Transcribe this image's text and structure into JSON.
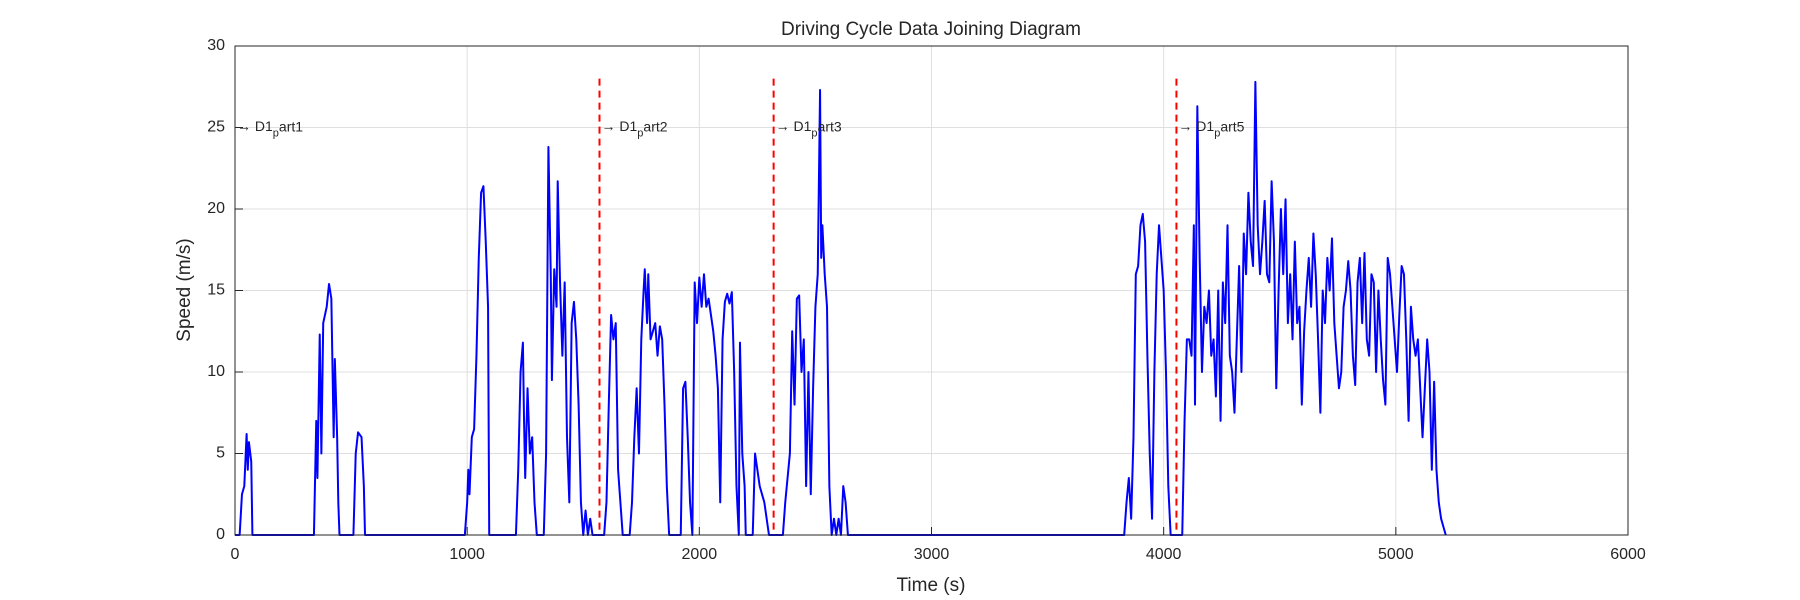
{
  "chart_data": {
    "type": "line",
    "title": "Driving Cycle Data Joining Diagram",
    "xlabel": "Time (s)",
    "ylabel": "Speed (m/s)",
    "xlim": [
      0,
      6000
    ],
    "xticks": [
      0,
      1000,
      2000,
      3000,
      4000,
      5000,
      6000
    ],
    "ylim": [
      0,
      30
    ],
    "yticks": [
      0,
      5,
      10,
      15,
      20,
      25,
      30
    ],
    "grid": true,
    "x": [
      0,
      20,
      30,
      40,
      50,
      55,
      60,
      70,
      75,
      340,
      350,
      355,
      365,
      372,
      380,
      395,
      405,
      415,
      425,
      430,
      440,
      445,
      450,
      510,
      520,
      530,
      545,
      555,
      560,
      990,
      1000,
      1005,
      1010,
      1020,
      1030,
      1040,
      1050,
      1060,
      1070,
      1080,
      1090,
      1095,
      1210,
      1220,
      1230,
      1240,
      1245,
      1250,
      1260,
      1270,
      1280,
      1290,
      1300,
      1330,
      1340,
      1350,
      1360,
      1365,
      1375,
      1385,
      1390,
      1400,
      1410,
      1420,
      1430,
      1440,
      1450,
      1460,
      1470,
      1480,
      1490,
      1500,
      1510,
      1520,
      1530,
      1540,
      1590,
      1600,
      1610,
      1620,
      1630,
      1640,
      1650,
      1660,
      1670,
      1700,
      1710,
      1720,
      1730,
      1740,
      1750,
      1760,
      1765,
      1775,
      1780,
      1790,
      1800,
      1810,
      1820,
      1830,
      1840,
      1850,
      1860,
      1870,
      1920,
      1930,
      1940,
      1950,
      1960,
      1970,
      1980,
      1990,
      2000,
      2010,
      2020,
      2030,
      2040,
      2050,
      2060,
      2070,
      2080,
      2090,
      2100,
      2110,
      2120,
      2130,
      2140,
      2150,
      2160,
      2170,
      2175,
      2185,
      2195,
      2200,
      2230,
      2240,
      2250,
      2260,
      2280,
      2300,
      2360,
      2370,
      2380,
      2390,
      2400,
      2410,
      2420,
      2430,
      2440,
      2450,
      2460,
      2470,
      2480,
      2490,
      2500,
      2510,
      2520,
      2525,
      2530,
      2540,
      2550,
      2560,
      2570,
      2580,
      2590,
      2600,
      2610,
      2620,
      2630,
      2640,
      3830,
      3840,
      3850,
      3860,
      3870,
      3880,
      3890,
      3900,
      3910,
      3920,
      3930,
      3940,
      3950,
      3960,
      3970,
      3980,
      3990,
      4000,
      4010,
      4020,
      4030,
      4080,
      4090,
      4100,
      4110,
      4120,
      4130,
      4135,
      4145,
      4155,
      4165,
      4175,
      4185,
      4195,
      4205,
      4215,
      4225,
      4235,
      4245,
      4255,
      4265,
      4275,
      4285,
      4295,
      4305,
      4315,
      4325,
      4335,
      4345,
      4355,
      4365,
      4375,
      4385,
      4395,
      4405,
      4415,
      4425,
      4435,
      4445,
      4455,
      4465,
      4475,
      4485,
      4495,
      4505,
      4515,
      4525,
      4535,
      4545,
      4555,
      4565,
      4575,
      4585,
      4595,
      4605,
      4615,
      4625,
      4635,
      4645,
      4655,
      4665,
      4675,
      4685,
      4695,
      4705,
      4715,
      4725,
      4735,
      4745,
      4755,
      4765,
      4775,
      4785,
      4795,
      4805,
      4815,
      4825,
      4835,
      4845,
      4855,
      4865,
      4875,
      4885,
      4895,
      4905,
      4915,
      4925,
      4935,
      4945,
      4955,
      4965,
      4975,
      4985,
      4995,
      5005,
      5015,
      5025,
      5035,
      5045,
      5055,
      5065,
      5075,
      5085,
      5095,
      5105,
      5115,
      5125,
      5135,
      5145,
      5155,
      5165,
      5175,
      5185,
      5195,
      5205,
      5215
    ],
    "series": [
      {
        "color": "#0000ff",
        "values": [
          0,
          0,
          2.5,
          3,
          6.2,
          4,
          5.7,
          4.5,
          0,
          0,
          7,
          3.5,
          12.3,
          5,
          13,
          14,
          15.4,
          14.5,
          6,
          10.8,
          6,
          2,
          0,
          0,
          5,
          6.3,
          6,
          3,
          0,
          0,
          2,
          4,
          2.5,
          6,
          6.5,
          11,
          17,
          21,
          21.4,
          18,
          14,
          0,
          0,
          4,
          10,
          11.8,
          7,
          3.5,
          9,
          5,
          6,
          2,
          0,
          0,
          5,
          23.8,
          16,
          9.5,
          16.3,
          14,
          21.7,
          15.5,
          11,
          15.5,
          6,
          2,
          13,
          14.3,
          12,
          8,
          2,
          0,
          1.5,
          0,
          1,
          0,
          0,
          2,
          8,
          13.5,
          12,
          13,
          4,
          2,
          0,
          0,
          2,
          6,
          9,
          5,
          12,
          15,
          16.3,
          13,
          16,
          12,
          12.5,
          13,
          11,
          12.8,
          12,
          8,
          3,
          0,
          0,
          9,
          9.4,
          6,
          2,
          0,
          15.5,
          13,
          15.8,
          14,
          16,
          14,
          14.5,
          13.5,
          12.5,
          11,
          9,
          2,
          12,
          14.3,
          14.8,
          14.2,
          14.9,
          10,
          3,
          0,
          11.8,
          5,
          3,
          0,
          0,
          5,
          4,
          3,
          2,
          0,
          0,
          2,
          3.5,
          5,
          12.5,
          8,
          14.5,
          14.7,
          10,
          12,
          3,
          10,
          2.5,
          9,
          14,
          16,
          27.3,
          17,
          19,
          16,
          14,
          3,
          0,
          1,
          0,
          1,
          0,
          3,
          2,
          0,
          0,
          2,
          3.5,
          1,
          6,
          16,
          16.5,
          19,
          19.7,
          18,
          11,
          5,
          1,
          10,
          16,
          19,
          17,
          15,
          10,
          3,
          0,
          0,
          7,
          12,
          12,
          11,
          19,
          8,
          26.3,
          17,
          10,
          14,
          13,
          15,
          11,
          12,
          8.5,
          15,
          7,
          15.5,
          13,
          19,
          11,
          10,
          7.5,
          12,
          16.5,
          10,
          18.5,
          16,
          21,
          18,
          16.5,
          27.8,
          19,
          16,
          18,
          20.5,
          16,
          15.5,
          21.7,
          18,
          9,
          15,
          20,
          16,
          20.6,
          13,
          16,
          12,
          18,
          13,
          14,
          8,
          12.5,
          15,
          17,
          14,
          18.5,
          16,
          12,
          7.5,
          15,
          13,
          17,
          15,
          18.2,
          13,
          11,
          9,
          10,
          14,
          15,
          16.8,
          15,
          11,
          9.2,
          15.5,
          17,
          13,
          17.3,
          12,
          11,
          16,
          15.5,
          10,
          15,
          12,
          9.5,
          8,
          17,
          16,
          14,
          12,
          10,
          13.5,
          16.5,
          16,
          12,
          7,
          14,
          12,
          11,
          12,
          9,
          6,
          9,
          12,
          10,
          4,
          9.4,
          4,
          2,
          1,
          0.5,
          0
        ]
      }
    ],
    "markers": {
      "x": [
        1570,
        2320,
        4055
      ],
      "y_top": 28,
      "color": "#ff0000",
      "style": "dashed"
    },
    "annotations": [
      {
        "x": 0,
        "y": 25,
        "text": "→ D1_part1"
      },
      {
        "x": 1570,
        "y": 25,
        "text": "→ D1_part2"
      },
      {
        "x": 2320,
        "y": 25,
        "text": "→ D1_part3"
      },
      {
        "x": 4055,
        "y": 25,
        "text": "→ D1_part5"
      }
    ]
  }
}
